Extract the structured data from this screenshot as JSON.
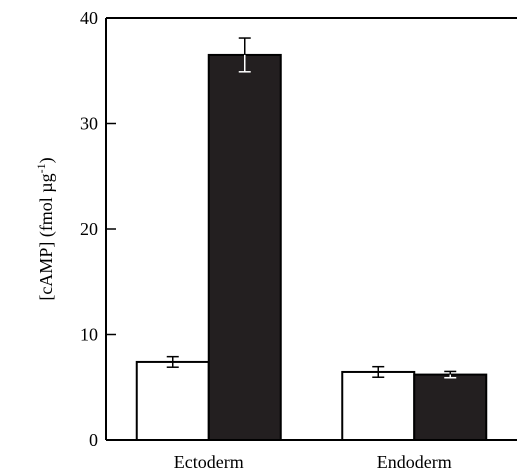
{
  "chart_data": {
    "type": "bar",
    "ylabel": "[cAMP] (fmol µg",
    "ylabel_sup": "-1",
    "ylabel_end": ")",
    "categories": [
      "Ectoderm",
      "Endoderm"
    ],
    "series": [
      {
        "color": "#ffffff",
        "values": [
          7.4,
          6.45
        ],
        "errors": [
          0.5,
          0.5
        ]
      },
      {
        "color": "#231f20",
        "values": [
          36.5,
          6.2
        ],
        "errors": [
          1.6,
          0.3
        ]
      }
    ],
    "ylim": [
      0,
      40
    ],
    "yticks": [
      0,
      10,
      20,
      30,
      40
    ]
  }
}
